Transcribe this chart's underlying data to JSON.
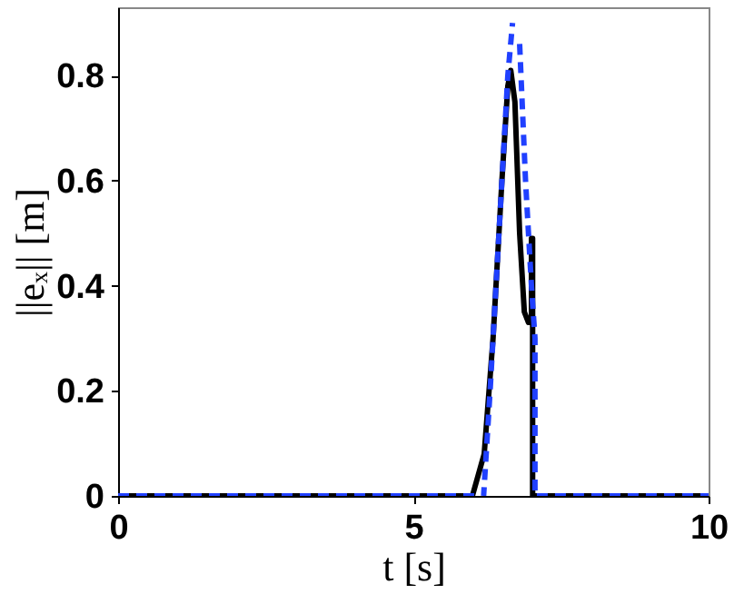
{
  "chart_data": {
    "type": "line",
    "xlabel": "t [s]",
    "ylabel": "||eₓ|| [m]",
    "xlim": [
      0,
      10
    ],
    "xticks": [
      0,
      5,
      10
    ],
    "ylim": [
      0,
      0.93
    ],
    "yticks": [
      {
        "value": 0,
        "label": "0"
      },
      0.2,
      0.4,
      0.6,
      0.8
    ],
    "grid": false,
    "series": [
      {
        "color": "#000000",
        "line_style": "solid",
        "x": [
          0,
          6.0,
          6.2,
          6.35,
          6.5,
          6.6,
          6.65,
          6.72,
          6.8,
          6.88,
          6.95,
          7.0,
          7.0,
          7.02,
          7.02,
          10
        ],
        "values": [
          0,
          0,
          0.08,
          0.3,
          0.6,
          0.78,
          0.81,
          0.75,
          0.5,
          0.35,
          0.33,
          0.33,
          0.49,
          0.49,
          0,
          0
        ]
      },
      {
        "color": "#2040ff",
        "line_style": "dashed",
        "x": [
          0,
          6.19,
          6.3,
          6.45,
          6.6,
          6.68,
          6.73,
          6.8,
          6.9,
          7.0,
          7.06,
          7.06,
          10
        ],
        "values": [
          0,
          0,
          0.2,
          0.5,
          0.8,
          0.9,
          null,
          0.86,
          0.6,
          0.4,
          0.3,
          0,
          0
        ]
      }
    ]
  }
}
